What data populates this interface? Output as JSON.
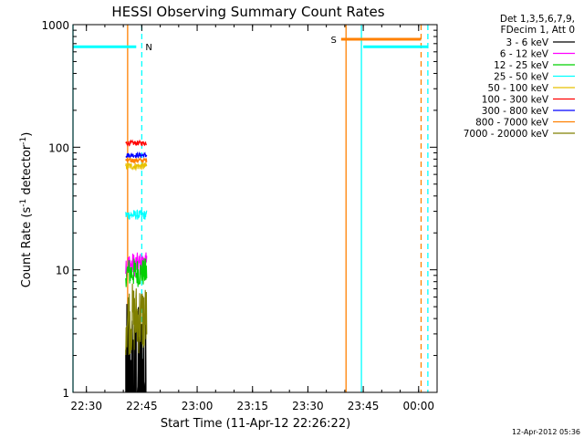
{
  "chart_data": {
    "type": "line",
    "title": "HESSI Observing Summary Count Rates",
    "xlabel": "Start Time (11-Apr-12 22:26:22)",
    "ylabel": "Count Rate (s",
    "ylabel_sup1": "-1",
    "ylabel_mid": " detector",
    "ylabel_sup2": "-1",
    "ylabel_end": ")",
    "y_scale": "log",
    "ylim": [
      1,
      1000
    ],
    "xlim": [
      "22:26:22",
      "00:05:00"
    ],
    "xticks": [
      "22:30",
      "22:45",
      "23:00",
      "23:15",
      "23:30",
      "23:45",
      "00:00"
    ],
    "yticks": [
      "1",
      "10",
      "100",
      "1000"
    ],
    "grid": false,
    "legend_position": "top-right",
    "legend_header": [
      "Det 1,3,5,6,7,9,",
      "FDecim 1, Att 0"
    ],
    "series": [
      {
        "name": "3 - 6 keV",
        "color": "#000000",
        "x_start": "22:40:40",
        "x_end": "22:46:20",
        "level": 1.5,
        "noise": 0.55
      },
      {
        "name": "6 - 12 keV",
        "color": "#ff00ff",
        "x_start": "22:40:40",
        "x_end": "22:46:20",
        "level": 11,
        "noise": 0.1
      },
      {
        "name": "12 - 25 keV",
        "color": "#00d000",
        "x_start": "22:40:40",
        "x_end": "22:46:20",
        "level": 9.5,
        "noise": 0.12
      },
      {
        "name": "25 - 50 keV",
        "color": "#00ffff",
        "x_start": "22:40:40",
        "x_end": "22:46:20",
        "level": 28,
        "noise": 0.04
      },
      {
        "name": "50 - 100 keV",
        "color": "#e8c000",
        "x_start": "22:40:40",
        "x_end": "22:46:20",
        "level": 70,
        "noise": 0.03
      },
      {
        "name": "100 - 300 keV",
        "color": "#ff0000",
        "x_start": "22:40:40",
        "x_end": "22:46:20",
        "level": 108,
        "noise": 0.02
      },
      {
        "name": "300 - 800 keV",
        "color": "#0000ff",
        "x_start": "22:40:40",
        "x_end": "22:46:20",
        "level": 86,
        "noise": 0.02
      },
      {
        "name": "800 - 7000 keV",
        "color": "#ff8000",
        "x_start": "22:40:40",
        "x_end": "22:46:20",
        "level": 78,
        "noise": 0.02
      },
      {
        "name": "7000 - 20000 keV",
        "color": "#808000",
        "x_start": "22:40:40",
        "x_end": "22:46:20",
        "level": 4,
        "noise": 0.3
      }
    ],
    "flags": [
      {
        "label": "N",
        "color": "#00ffff",
        "y": 660,
        "x_start": "22:26:22",
        "x_end": "22:43:30",
        "label_x": "22:45:00"
      },
      {
        "label": "N",
        "color": "#00ffff",
        "y": 660,
        "x_start": "23:45:00",
        "x_end": "00:02:30",
        "label_x": ""
      },
      {
        "label": "S",
        "color": "#ff8000",
        "y": 760,
        "x_start": "23:39:00",
        "x_end": "00:00:40",
        "label_x": "23:37:00"
      }
    ],
    "vertical_lines": [
      {
        "x": "22:26:22",
        "color": "#00ffff",
        "style": "solid"
      },
      {
        "x": "22:41:10",
        "color": "#ff8000",
        "style": "solid"
      },
      {
        "x": "22:45:00",
        "color": "#00ffff",
        "style": "dashed"
      },
      {
        "x": "23:40:20",
        "color": "#ff8000",
        "style": "solid"
      },
      {
        "x": "23:44:30",
        "color": "#00ffff",
        "style": "solid"
      },
      {
        "x": "00:00:40",
        "color": "#ff8000",
        "style": "dashed"
      },
      {
        "x": "00:02:30",
        "color": "#00ffff",
        "style": "dashed"
      }
    ],
    "footer": "12-Apr-2012 05:36"
  }
}
